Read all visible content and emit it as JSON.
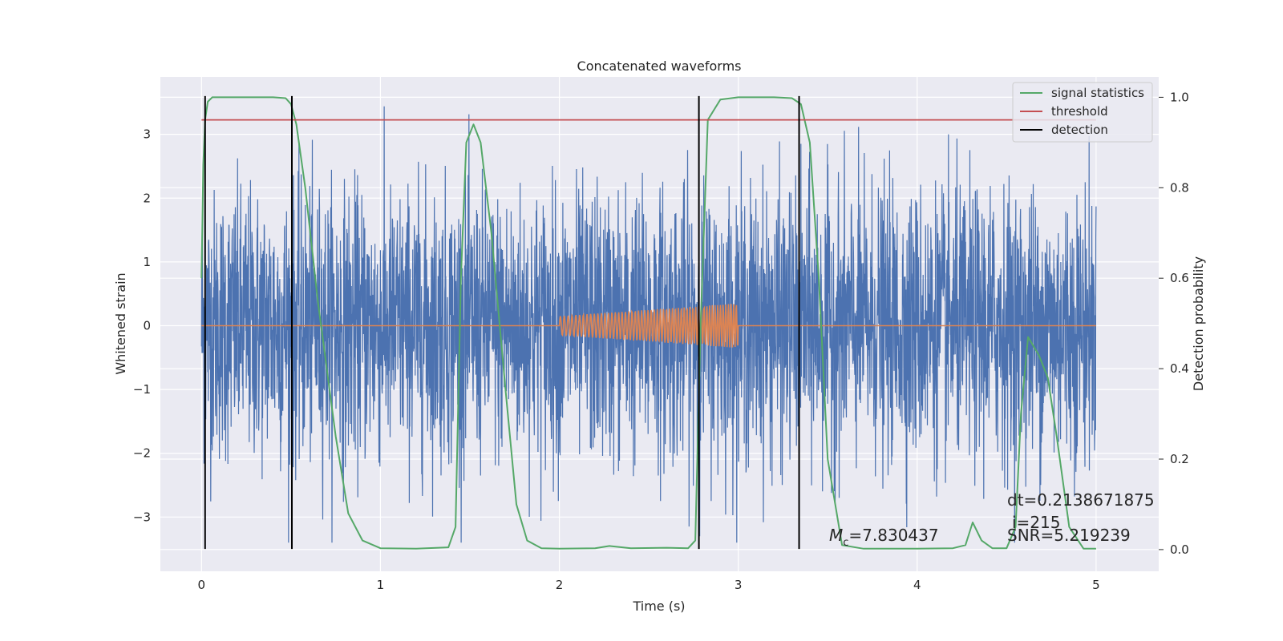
{
  "chart_data": {
    "type": "line",
    "title": "Concatenated waveforms",
    "xlabel": "Time (s)",
    "ylabel": "Whitened strain",
    "y2label": "Detection probability",
    "xlim": [
      -0.23,
      5.35
    ],
    "ylim": [
      -3.85,
      3.9
    ],
    "y2lim": [
      -0.048,
      1.045
    ],
    "grid": true,
    "legend_position": "top-right",
    "x_ticks": [
      0,
      1,
      2,
      3,
      4,
      5
    ],
    "y_ticks": [
      -3,
      -2,
      -1,
      0,
      1,
      2,
      3
    ],
    "y2_ticks": [
      0.0,
      0.2,
      0.4,
      0.6,
      0.8,
      1.0
    ],
    "x_tick_labels": [
      "0",
      "1",
      "2",
      "3",
      "4",
      "5"
    ],
    "y_tick_labels": [
      "−3",
      "−2",
      "−1",
      "0",
      "1",
      "2",
      "3"
    ],
    "y2_tick_labels": [
      "0.0",
      "0.2",
      "0.4",
      "0.6",
      "0.8",
      "1.0"
    ],
    "strain_noise": {
      "t_start": 0,
      "t_end": 5,
      "amplitude_rms": 1.0,
      "color": "#4c72b0"
    },
    "injected_waveform": {
      "t_start": 2.0,
      "t_end": 3.0,
      "amp_start": 0.15,
      "amp_end": 0.35,
      "color": "#dd8452"
    },
    "series": [
      {
        "name": "signal statistics",
        "axis": "right",
        "color": "#55a868",
        "x": [
          0.0,
          0.01,
          0.02,
          0.035,
          0.06,
          0.1,
          0.2,
          0.4,
          0.47,
          0.5,
          0.53,
          0.58,
          0.65,
          0.75,
          0.82,
          0.9,
          1.0,
          1.2,
          1.38,
          1.42,
          1.45,
          1.48,
          1.52,
          1.56,
          1.62,
          1.7,
          1.76,
          1.82,
          1.9,
          2.0,
          2.2,
          2.28,
          2.4,
          2.6,
          2.72,
          2.76,
          2.79,
          2.83,
          2.9,
          3.0,
          3.2,
          3.3,
          3.35,
          3.4,
          3.45,
          3.5,
          3.58,
          3.7,
          4.0,
          4.2,
          4.27,
          4.31,
          4.36,
          4.42,
          4.5,
          4.55,
          4.58,
          4.62,
          4.68,
          4.73,
          4.78,
          4.85,
          4.93,
          5.0
        ],
        "y": [
          0.6,
          0.85,
          0.95,
          0.99,
          1.0,
          1.0,
          1.0,
          1.0,
          0.998,
          0.985,
          0.94,
          0.8,
          0.55,
          0.25,
          0.08,
          0.02,
          0.003,
          0.002,
          0.005,
          0.05,
          0.6,
          0.9,
          0.94,
          0.9,
          0.7,
          0.35,
          0.1,
          0.02,
          0.003,
          0.002,
          0.003,
          0.008,
          0.003,
          0.004,
          0.003,
          0.02,
          0.5,
          0.95,
          0.995,
          1.0,
          1.0,
          0.998,
          0.985,
          0.9,
          0.6,
          0.2,
          0.01,
          0.002,
          0.002,
          0.003,
          0.01,
          0.06,
          0.02,
          0.003,
          0.003,
          0.05,
          0.3,
          0.47,
          0.43,
          0.38,
          0.25,
          0.05,
          0.002,
          0.002
        ]
      },
      {
        "name": "threshold",
        "axis": "right",
        "color": "#c44e52",
        "x": [
          0.0,
          5.0
        ],
        "y": [
          0.95,
          0.95
        ]
      },
      {
        "name": "detection",
        "axis": "left",
        "color": "#000000",
        "x": [
          0.02,
          0.505,
          2.78,
          3.34
        ],
        "y_range": [
          -3.5,
          3.6
        ]
      }
    ],
    "annotations": {
      "mc_text": "=7.830437",
      "dt": "dt=0.2138671875",
      "i": "i=215",
      "snr": "SNR=5.219239"
    }
  }
}
